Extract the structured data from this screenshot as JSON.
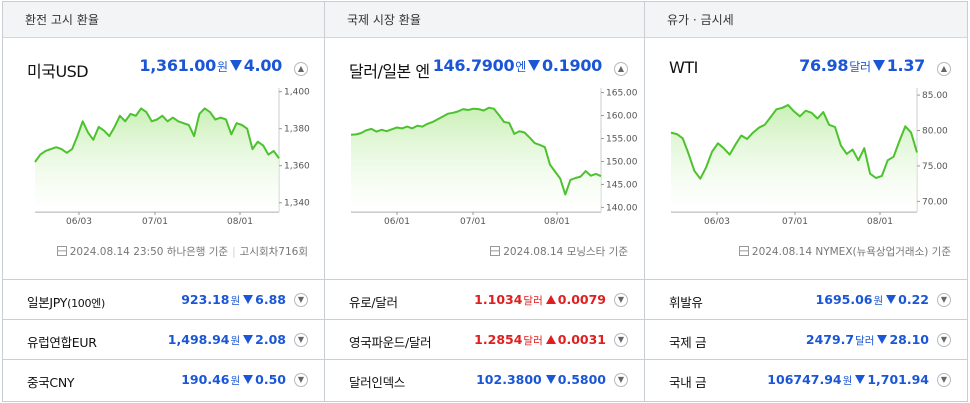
{
  "panels": [
    {
      "header": "환전 고시 환율",
      "main": {
        "name": "미국USD",
        "value": "1,361.00",
        "unit": "원",
        "change": "4.00",
        "direction": "down"
      },
      "source": {
        "date": "2024.08.14 23:50",
        "text": "하나은행 기준",
        "extra": "고시회차716회"
      },
      "rows": [
        {
          "name": "일본JPY",
          "sub": "(100엔)",
          "value": "923.18",
          "unit": "원",
          "change": "6.88",
          "direction": "down"
        },
        {
          "name": "유럽연합EUR",
          "sub": "",
          "value": "1,498.94",
          "unit": "원",
          "change": "2.08",
          "direction": "down"
        },
        {
          "name": "중국CNY",
          "sub": "",
          "value": "190.46",
          "unit": "원",
          "change": "0.50",
          "direction": "down"
        }
      ]
    },
    {
      "header": "국제 시장 환율",
      "main": {
        "name": "달러/일본 엔",
        "value": "146.7900",
        "unit": "엔",
        "change": "0.1900",
        "direction": "down"
      },
      "source": {
        "date": "2024.08.14",
        "text": "모닝스타 기준",
        "extra": ""
      },
      "rows": [
        {
          "name": "유로/달러",
          "sub": "",
          "value": "1.1034",
          "unit": "달러",
          "change": "0.0079",
          "direction": "up"
        },
        {
          "name": "영국파운드/달러",
          "sub": "",
          "value": "1.2854",
          "unit": "달러",
          "change": "0.0031",
          "direction": "up"
        },
        {
          "name": "달러인덱스",
          "sub": "",
          "value": "102.3800",
          "unit": "",
          "change": "0.5800",
          "direction": "down"
        }
      ]
    },
    {
      "header": "유가 · 금시세",
      "main": {
        "name": "WTI",
        "value": "76.98",
        "unit": "달러",
        "change": "1.37",
        "direction": "down"
      },
      "source": {
        "date": "2024.08.14",
        "text": "NYMEX(뉴욕상업거래소) 기준",
        "extra": ""
      },
      "rows": [
        {
          "name": "휘발유",
          "sub": "",
          "value": "1695.06",
          "unit": "원",
          "change": "0.22",
          "direction": "down"
        },
        {
          "name": "국제 금",
          "sub": "",
          "value": "2479.7",
          "unit": "달러",
          "change": "28.10",
          "direction": "down"
        },
        {
          "name": "국내 금",
          "sub": "",
          "value": "106747.94",
          "unit": "원",
          "change": "1,701.94",
          "direction": "down"
        }
      ]
    }
  ],
  "colors": {
    "line": "#4cc22e",
    "fill_top": "#c9f0b6",
    "fill_bottom": "#ffffff",
    "down": "#1a56d6",
    "up": "#e02020"
  },
  "icons": {
    "toggle": "chevron-up-icon",
    "row_toggle": "chevron-down-icon",
    "source": "document-icon"
  },
  "chart_data": [
    {
      "type": "area",
      "x_ticks": [
        "06/03",
        "07/01",
        "08/01"
      ],
      "y_ticks": [
        "1,400",
        "1,380",
        "1,360",
        "1,340"
      ],
      "ylim": [
        1335,
        1402
      ],
      "values": [
        1362,
        1366,
        1368,
        1369,
        1370,
        1369,
        1367,
        1369,
        1376,
        1384,
        1378,
        1374,
        1381,
        1379,
        1376,
        1381,
        1387,
        1384,
        1388,
        1387,
        1391,
        1389,
        1384,
        1385,
        1387,
        1384,
        1386,
        1384,
        1383,
        1382,
        1376,
        1388,
        1391,
        1389,
        1385,
        1386,
        1385,
        1377,
        1383,
        1382,
        1380,
        1369,
        1373,
        1371,
        1366,
        1368,
        1364
      ]
    },
    {
      "type": "area",
      "x_ticks": [
        "06/01",
        "07/01",
        "08/01"
      ],
      "y_ticks": [
        "165.00",
        "160.00",
        "155.00",
        "150.00",
        "145.00",
        "140.00"
      ],
      "ylim": [
        139,
        166
      ],
      "values": [
        155.8,
        155.9,
        156.2,
        156.8,
        157.1,
        156.5,
        156.9,
        156.6,
        157.0,
        157.4,
        157.2,
        157.6,
        157.2,
        157.8,
        157.6,
        158.2,
        158.6,
        159.2,
        159.8,
        160.4,
        160.6,
        160.9,
        161.4,
        161.2,
        161.5,
        161.4,
        161.1,
        161.7,
        161.5,
        160.1,
        158.6,
        158.4,
        156.0,
        156.6,
        156.3,
        155.2,
        154.0,
        153.6,
        153.1,
        149.3,
        147.8,
        146.3,
        142.8,
        146.0,
        146.4,
        146.7,
        147.9,
        146.9,
        147.3,
        146.8
      ]
    },
    {
      "type": "area",
      "x_ticks": [
        "06/03",
        "07/01",
        "08/01"
      ],
      "y_ticks": [
        "85.00",
        "80.00",
        "75.00",
        "70.00"
      ],
      "ylim": [
        68.5,
        86
      ],
      "values": [
        79.7,
        79.5,
        78.9,
        76.7,
        74.3,
        73.2,
        74.8,
        77.0,
        78.2,
        77.5,
        76.6,
        78.0,
        79.3,
        78.8,
        79.7,
        80.4,
        80.8,
        81.9,
        83.0,
        83.2,
        83.6,
        82.7,
        82.0,
        82.8,
        82.5,
        81.7,
        82.6,
        80.8,
        80.5,
        77.9,
        76.7,
        77.3,
        75.8,
        77.5,
        73.9,
        73.3,
        73.6,
        75.8,
        76.3,
        78.5,
        80.6,
        79.7,
        76.9
      ]
    }
  ]
}
